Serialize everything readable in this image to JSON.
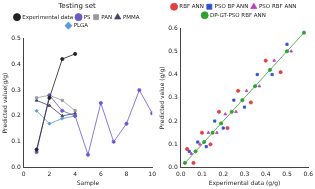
{
  "chart_data": [
    {
      "type": "line",
      "title": "Testing set",
      "x_label": "Sample",
      "y_label": "Predicted value(g/g)",
      "legend": "top",
      "grid": false,
      "x": [
        1,
        2,
        3,
        4,
        5,
        6,
        7,
        8,
        9,
        10
      ],
      "xlim": [
        0,
        10
      ],
      "xticks": [
        0,
        2,
        4,
        6,
        8,
        10
      ],
      "ylim": [
        0,
        0.5
      ],
      "yticks": [
        {
          "value": 0,
          "label": "0.0"
        },
        0.1,
        0.2,
        0.3,
        0.4,
        0.5
      ],
      "series": [
        {
          "name": "Experimental data",
          "color": "#222222",
          "marker": "circle",
          "line_style": "solid",
          "values": [
            0.07,
            0.27,
            0.42,
            0.44,
            null,
            null,
            null,
            null,
            null,
            null
          ]
        },
        {
          "name": "PS",
          "color": "#6a5acd",
          "marker": "circle",
          "line_style": "solid",
          "values": [
            0.06,
            0.28,
            0.22,
            0.2,
            0.05,
            0.25,
            0.1,
            0.17,
            0.3,
            0.21
          ]
        },
        {
          "name": "PAN",
          "color": "#999999",
          "marker": "square",
          "line_style": "solid",
          "values": [
            0.27,
            0.28,
            0.26,
            0.22,
            null,
            null,
            null,
            null,
            null,
            null
          ]
        },
        {
          "name": "PMMA",
          "color": "#444466",
          "marker": "triangle",
          "line_style": "solid",
          "values": [
            0.26,
            0.24,
            0.2,
            0.21,
            null,
            null,
            null,
            null,
            null,
            null
          ]
        },
        {
          "name": "PLGA",
          "color": "#5b9bd5",
          "marker": "diamond",
          "line_style": "solid",
          "values": [
            0.22,
            0.17,
            0.19,
            0.2,
            null,
            null,
            null,
            null,
            null,
            null
          ]
        }
      ]
    },
    {
      "type": "scatter",
      "x_label": "Experimental data (g/g)",
      "y_label": "Predicted value (g/g)",
      "legend": "top",
      "grid": false,
      "xlim": [
        0,
        0.6
      ],
      "xticks": [
        {
          "value": 0,
          "label": "0.0"
        },
        0.1,
        0.2,
        0.3,
        0.4,
        0.5,
        0.6
      ],
      "ylim": [
        0,
        0.6
      ],
      "yticks": [
        {
          "value": 0,
          "label": "0.0"
        },
        0.1,
        0.2,
        0.3,
        0.4,
        0.5,
        0.6
      ],
      "series": [
        {
          "name": "RBF ANN",
          "color": "#e04040",
          "marker": "circle",
          "line_style": "none",
          "x": [
            0.03,
            0.06,
            0.1,
            0.14,
            0.18,
            0.22,
            0.27,
            0.33,
            0.4,
            0.47
          ],
          "values": [
            0.08,
            0.02,
            0.15,
            0.1,
            0.24,
            0.17,
            0.33,
            0.28,
            0.46,
            0.41
          ]
        },
        {
          "name": "PSO BP ANN",
          "color": "#3050d0",
          "marker": "square",
          "line_style": "none",
          "x": [
            0.04,
            0.08,
            0.12,
            0.16,
            0.2,
            0.25,
            0.3,
            0.36,
            0.43,
            0.5
          ],
          "values": [
            0.07,
            0.11,
            0.09,
            0.2,
            0.17,
            0.29,
            0.26,
            0.4,
            0.4,
            0.53
          ]
        },
        {
          "name": "PSO RBF ANN",
          "color": "#c040c0",
          "marker": "triangle",
          "line_style": "none",
          "x": [
            0.05,
            0.09,
            0.13,
            0.17,
            0.21,
            0.26,
            0.31,
            0.37,
            0.44,
            0.52
          ],
          "values": [
            0.06,
            0.1,
            0.15,
            0.15,
            0.23,
            0.24,
            0.33,
            0.35,
            0.46,
            0.5
          ]
        },
        {
          "name": "DP-GT-PSO RBF ANN",
          "color": "#30a030",
          "marker": "circle",
          "line_style": "solid",
          "x": [
            0.02,
            0.07,
            0.11,
            0.15,
            0.19,
            0.24,
            0.29,
            0.35,
            0.42,
            0.5,
            0.58
          ],
          "values": [
            0.02,
            0.07,
            0.11,
            0.15,
            0.19,
            0.24,
            0.29,
            0.35,
            0.42,
            0.5,
            0.58
          ]
        }
      ]
    }
  ]
}
